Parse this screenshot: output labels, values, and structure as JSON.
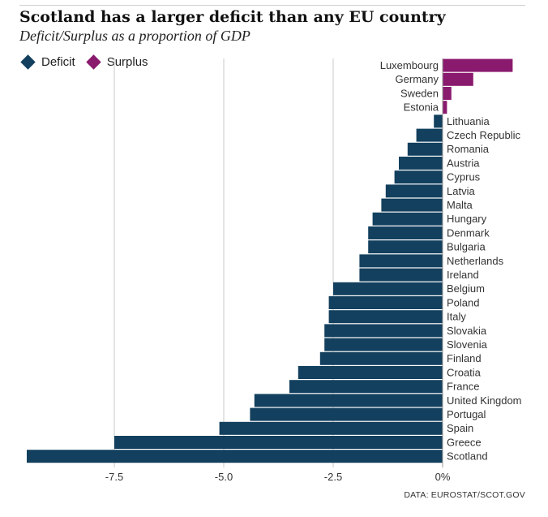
{
  "title": "Scotland has a larger deficit than any EU country",
  "subtitle": "Deficit/Surplus as a proportion of GDP",
  "source": "DATA:  EUROSTAT/SCOT.GOV",
  "legend": [
    {
      "label": "Deficit",
      "color": "#13405e"
    },
    {
      "label": "Surplus",
      "color": "#8a1a6e"
    }
  ],
  "chart_data": {
    "type": "bar",
    "orientation": "horizontal",
    "xlim": [
      -9.5,
      1.8
    ],
    "xticks": [
      {
        "value": -7.5,
        "label": "-7.5"
      },
      {
        "value": -5.0,
        "label": "-5.0"
      },
      {
        "value": -2.5,
        "label": "-2.5"
      },
      {
        "value": 0,
        "label": "0%"
      }
    ],
    "grid": "vertical",
    "legend_position": "top-left",
    "categories": [
      "Luxembourg",
      "Germany",
      "Sweden",
      "Estonia",
      "Lithuania",
      "Czech Republic",
      "Romania",
      "Austria",
      "Cyprus",
      "Latvia",
      "Malta",
      "Hungary",
      "Denmark",
      "Bulgaria",
      "Netherlands",
      "Ireland",
      "Belgium",
      "Poland",
      "Italy",
      "Slovakia",
      "Slovenia",
      "Finland",
      "Croatia",
      "France",
      "United Kingdom",
      "Portugal",
      "Spain",
      "Greece",
      "Scotland"
    ],
    "values": [
      1.6,
      0.7,
      0.2,
      0.1,
      -0.2,
      -0.6,
      -0.8,
      -1.0,
      -1.1,
      -1.3,
      -1.4,
      -1.6,
      -1.7,
      -1.7,
      -1.9,
      -1.9,
      -2.5,
      -2.6,
      -2.6,
      -2.7,
      -2.7,
      -2.8,
      -3.3,
      -3.5,
      -4.3,
      -4.4,
      -5.1,
      -7.5,
      -9.5
    ]
  }
}
